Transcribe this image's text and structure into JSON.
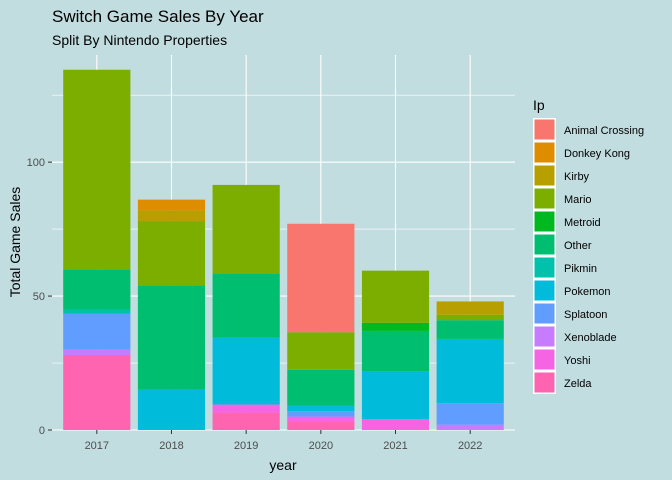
{
  "chart_data": {
    "type": "bar",
    "stacked": true,
    "title": "Switch Game Sales By Year",
    "subtitle": "Split By Nintendo Properties",
    "xlabel": "year",
    "ylabel": "Total Game Sales",
    "ylim": [
      0,
      140
    ],
    "yticks": [
      0,
      50,
      100
    ],
    "grid": true,
    "legend_position": "right",
    "legend_title": "Ip",
    "categories": [
      "2017",
      "2018",
      "2019",
      "2020",
      "2021",
      "2022"
    ],
    "series": [
      {
        "name": "Animal Crossing",
        "color": "#F8766D",
        "values": [
          0,
          0,
          0,
          40.5,
          0,
          0
        ]
      },
      {
        "name": "Donkey Kong",
        "color": "#DE8C00",
        "values": [
          0,
          4,
          0,
          0,
          0,
          0
        ]
      },
      {
        "name": "Kirby",
        "color": "#B79F00",
        "values": [
          0,
          4,
          0,
          0,
          0,
          5
        ]
      },
      {
        "name": "Mario",
        "color": "#7CAE00",
        "values": [
          74.5,
          24,
          33,
          14,
          19.5,
          2
        ]
      },
      {
        "name": "Metroid",
        "color": "#00B81F",
        "values": [
          0,
          0,
          0,
          0,
          3,
          0
        ]
      },
      {
        "name": "Other",
        "color": "#00BE70",
        "values": [
          15,
          39,
          24,
          13.5,
          15,
          7
        ]
      },
      {
        "name": "Pikmin",
        "color": "#00C1AB",
        "values": [
          1.5,
          0,
          0,
          0,
          0,
          0
        ]
      },
      {
        "name": "Pokemon",
        "color": "#00BBDA",
        "values": [
          0,
          15,
          25,
          2,
          18,
          24
        ]
      },
      {
        "name": "Splatoon",
        "color": "#619CFF",
        "values": [
          13.5,
          0,
          0,
          2,
          0,
          8
        ]
      },
      {
        "name": "Xenoblade",
        "color": "#C77CFF",
        "values": [
          2,
          0,
          0,
          0,
          0,
          2
        ]
      },
      {
        "name": "Yoshi",
        "color": "#F564E3",
        "values": [
          0,
          0,
          3,
          2,
          4,
          0
        ]
      },
      {
        "name": "Zelda",
        "color": "#FF64B0",
        "values": [
          28,
          0,
          6.5,
          3,
          0,
          0
        ]
      }
    ]
  }
}
